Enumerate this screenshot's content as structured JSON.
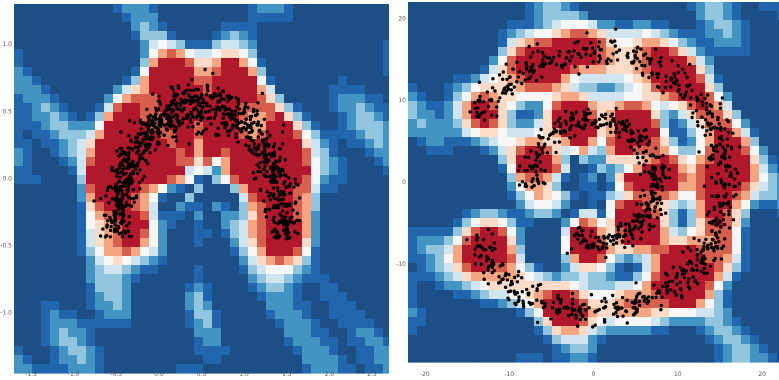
{
  "chart_data": [
    {
      "type": "scatter",
      "title": "",
      "xlabel": "",
      "ylabel": "",
      "xlim": [
        -1.7,
        2.7
      ],
      "ylim": [
        -1.4,
        1.3
      ],
      "x_ticks": [
        "-1.5",
        "-1.0",
        "-0.5",
        "0.0",
        "0.5",
        "1.0",
        "1.5",
        "2.0",
        "2.5"
      ],
      "y_ticks": [
        "1.0",
        "0.5",
        "0.0",
        "-0.5",
        "-1.0"
      ],
      "grid": false,
      "background": "decision-function contour (red = high, blue = low)",
      "series": [
        {
          "shape": "moon-arc",
          "cx": 0.5,
          "cy": -0.45,
          "r": 1.0,
          "angle_start_deg": 0,
          "angle_end_deg": 180,
          "noise": 0.09,
          "n_points": 900,
          "marker_color": "#000000"
        }
      ]
    },
    {
      "type": "scatter",
      "title": "",
      "xlabel": "",
      "ylabel": "",
      "xlim": [
        -22,
        22
      ],
      "ylim": [
        -22,
        22
      ],
      "x_ticks": [
        "-20",
        "-10",
        "0",
        "10",
        "20"
      ],
      "y_ticks": [
        "20",
        "10",
        "0",
        "-10"
      ],
      "grid": false,
      "background": "decision-function contour (red = high, blue = low)",
      "series": [
        {
          "shape": "ring",
          "cx": 0,
          "cy": 0,
          "r": 15.8,
          "angle_start_deg": -155,
          "angle_end_deg": 150,
          "noise": 0.9,
          "n_points": 700,
          "marker_color": "#000000"
        },
        {
          "shape": "ring",
          "cx": 0,
          "cy": 0,
          "r": 7.5,
          "angle_start_deg": -110,
          "angle_end_deg": 185,
          "noise": 0.8,
          "n_points": 380,
          "marker_color": "#000000"
        }
      ]
    }
  ],
  "colors": {
    "red_dark": "#b2182b",
    "red": "#d6604d",
    "salmon": "#f4a582",
    "pink": "#fddbc7",
    "white": "#f7f7f7",
    "blue_pale": "#d1e5f0",
    "blue_light": "#92c5de",
    "blue": "#4393c3",
    "blue_mid": "#2166ac",
    "blue_dark": "#1b4f86"
  }
}
